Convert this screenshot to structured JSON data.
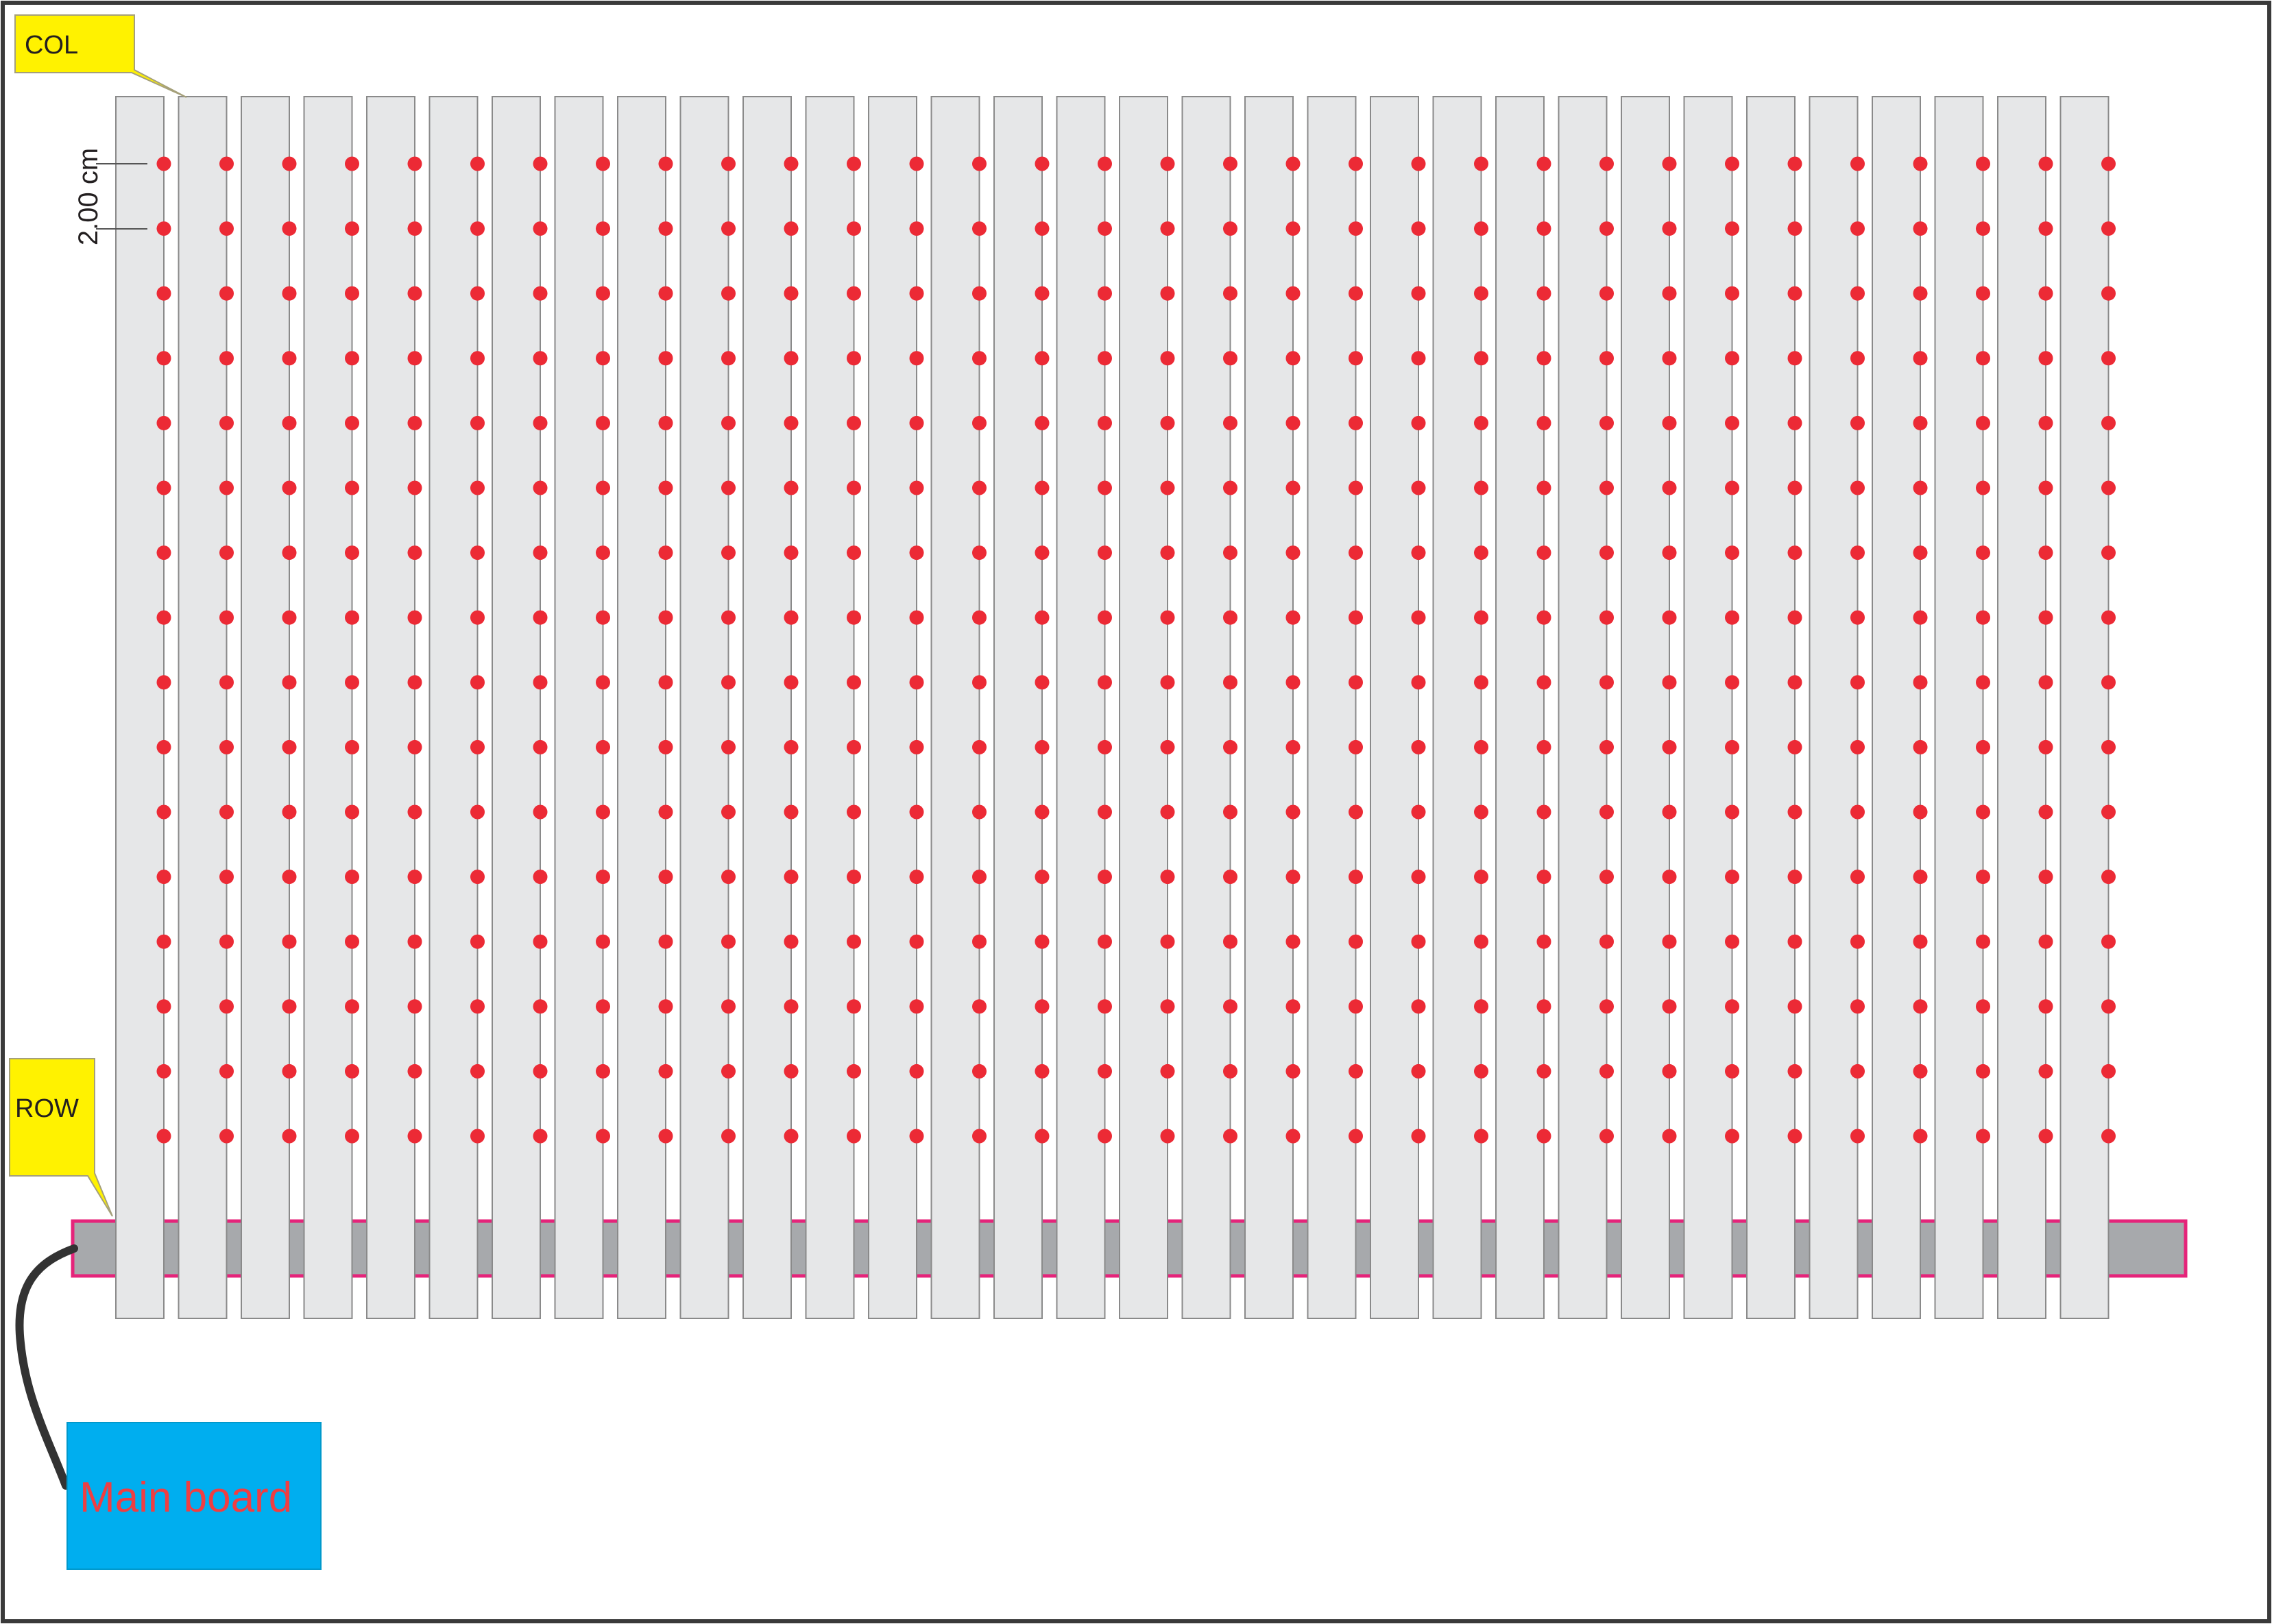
{
  "labels": {
    "col": "COL",
    "row": "ROW",
    "spacing": "2.00 cm",
    "main_board": "Main board"
  },
  "grid": {
    "columns": 32,
    "leds_per_column": 16
  },
  "colors": {
    "background": "#ffffff",
    "frame": "#3a3a3a",
    "strip_fill": "#e6e7e8",
    "strip_stroke": "#8a8a8a",
    "led": "#ec2a35",
    "row_bar_fill": "#a7a9ac",
    "row_bar_stroke": "#e5247a",
    "callout": "#fff200",
    "main_board_fill": "#00aeef",
    "main_board_text": "#ef3e42",
    "cable": "#333333",
    "dimension_line": "#555555"
  }
}
